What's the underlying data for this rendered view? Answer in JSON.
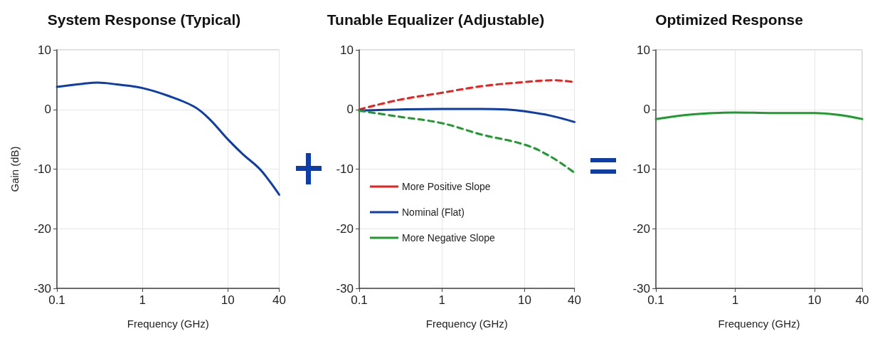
{
  "chart_data": [
    {
      "type": "line",
      "title": "System Response (Typical)",
      "xlabel": "Frequency (GHz)",
      "ylabel": "Gain (dB)",
      "log": "x",
      "grid": true,
      "legend": false,
      "xlim": [
        0.1,
        40
      ],
      "xticks": [
        0.1,
        1,
        10,
        40
      ],
      "ylim": [
        -30,
        10
      ],
      "yticks": [
        -30,
        -20,
        -10,
        0,
        10
      ],
      "series": [
        {
          "color": "#0d3ea8",
          "line_style": "solid",
          "x": [
            0.1,
            0.2,
            0.3,
            0.5,
            1,
            2,
            4,
            6,
            10,
            15,
            23,
            30,
            40
          ],
          "values": [
            3.8,
            4.3,
            4.5,
            4.2,
            3.6,
            2.3,
            0.5,
            -1.5,
            -5,
            -7.5,
            -9.8,
            -11.8,
            -14.3
          ]
        }
      ]
    },
    {
      "type": "line",
      "title": "Tunable Equalizer (Adjustable)",
      "xlabel": "Frequency (GHz)",
      "log": "x",
      "grid": true,
      "legend": "left",
      "xlim": [
        0.1,
        40
      ],
      "xticks": [
        0.1,
        1,
        10,
        40
      ],
      "ylim": [
        -30,
        10
      ],
      "yticks": [
        -30,
        -20,
        -10,
        0,
        10
      ],
      "series": [
        {
          "name": "More Positive Slope",
          "color": "#e8231f",
          "line_style": "dashed",
          "x": [
            0.1,
            0.3,
            1,
            3,
            10,
            22,
            40
          ],
          "values": [
            0,
            1.6,
            2.8,
            3.9,
            4.6,
            4.9,
            4.6
          ]
        },
        {
          "name": "Nominal (Flat)",
          "color": "#0d3ea8",
          "line_style": "solid",
          "x": [
            0.1,
            1,
            3,
            6,
            10,
            20,
            40
          ],
          "values": [
            -0.2,
            0.1,
            0.1,
            0,
            -0.3,
            -1,
            -2.1
          ]
        },
        {
          "name": "More Negative Slope",
          "color": "#1e9a2e",
          "line_style": "dashed",
          "x": [
            0.1,
            0.3,
            1,
            3,
            10,
            20,
            40
          ],
          "values": [
            -0.2,
            -1.2,
            -2.3,
            -4.2,
            -5.9,
            -7.8,
            -10.6
          ]
        }
      ]
    },
    {
      "type": "line",
      "title": "Optimized Response",
      "xlabel": "Frequency (GHz)",
      "log": "x",
      "grid": true,
      "legend": false,
      "xlim": [
        0.1,
        40
      ],
      "xticks": [
        0.1,
        1,
        10,
        40
      ],
      "ylim": [
        -30,
        10
      ],
      "yticks": [
        -30,
        -20,
        -10,
        0,
        10
      ],
      "series": [
        {
          "color": "#1e9a2e",
          "line_style": "solid",
          "x": [
            0.1,
            0.3,
            1,
            3,
            10,
            20,
            40
          ],
          "values": [
            -1.6,
            -0.8,
            -0.5,
            -0.6,
            -0.6,
            -0.9,
            -1.6
          ]
        }
      ]
    }
  ]
}
